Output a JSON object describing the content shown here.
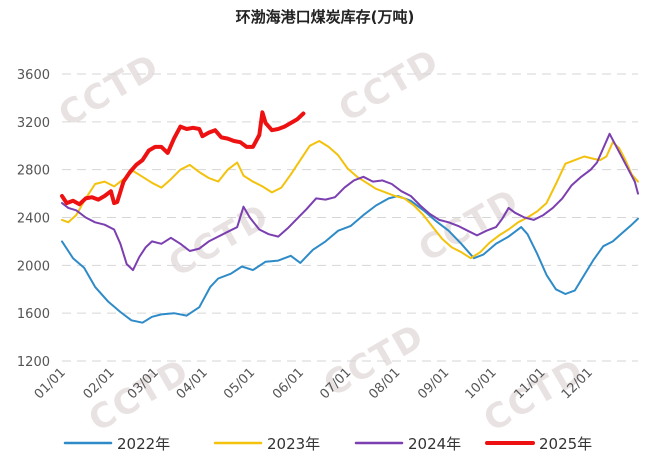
{
  "chart_data": {
    "type": "line",
    "title": "环渤海港口煤炭库存(万吨)",
    "watermark": "CCTD",
    "ylim": [
      1200,
      3600
    ],
    "yticks": [
      1200,
      1600,
      2000,
      2400,
      2800,
      3200,
      3600
    ],
    "xlim": [
      1,
      366
    ],
    "xticks": [
      {
        "label": "01/01",
        "day": 1
      },
      {
        "label": "02/01",
        "day": 32
      },
      {
        "label": "03/01",
        "day": 60
      },
      {
        "label": "04/01",
        "day": 91
      },
      {
        "label": "05/01",
        "day": 121
      },
      {
        "label": "06/01",
        "day": 152
      },
      {
        "label": "07/01",
        "day": 182
      },
      {
        "label": "08/01",
        "day": 213
      },
      {
        "label": "09/01",
        "day": 244
      },
      {
        "label": "10/01",
        "day": 274
      },
      {
        "label": "11/01",
        "day": 305
      },
      {
        "label": "12/01",
        "day": 335
      }
    ],
    "grid": true,
    "legend_position": "bottom",
    "series": [
      {
        "name": "2022年",
        "color": "#2e8bc8",
        "width": 2,
        "points": [
          [
            1,
            2200
          ],
          [
            8,
            2060
          ],
          [
            15,
            1980
          ],
          [
            22,
            1820
          ],
          [
            30,
            1700
          ],
          [
            38,
            1610
          ],
          [
            45,
            1540
          ],
          [
            52,
            1520
          ],
          [
            58,
            1570
          ],
          [
            64,
            1590
          ],
          [
            72,
            1600
          ],
          [
            80,
            1580
          ],
          [
            88,
            1650
          ],
          [
            95,
            1820
          ],
          [
            100,
            1890
          ],
          [
            108,
            1930
          ],
          [
            115,
            1990
          ],
          [
            122,
            1960
          ],
          [
            130,
            2030
          ],
          [
            138,
            2040
          ],
          [
            146,
            2080
          ],
          [
            152,
            2020
          ],
          [
            160,
            2130
          ],
          [
            168,
            2200
          ],
          [
            176,
            2290
          ],
          [
            184,
            2330
          ],
          [
            192,
            2420
          ],
          [
            200,
            2500
          ],
          [
            208,
            2560
          ],
          [
            214,
            2580
          ],
          [
            222,
            2540
          ],
          [
            230,
            2460
          ],
          [
            238,
            2370
          ],
          [
            246,
            2290
          ],
          [
            254,
            2180
          ],
          [
            262,
            2060
          ],
          [
            268,
            2090
          ],
          [
            276,
            2180
          ],
          [
            284,
            2240
          ],
          [
            292,
            2320
          ],
          [
            296,
            2260
          ],
          [
            302,
            2100
          ],
          [
            308,
            1920
          ],
          [
            314,
            1800
          ],
          [
            320,
            1760
          ],
          [
            326,
            1790
          ],
          [
            332,
            1920
          ],
          [
            338,
            2050
          ],
          [
            344,
            2160
          ],
          [
            350,
            2200
          ],
          [
            356,
            2270
          ],
          [
            362,
            2340
          ],
          [
            366,
            2390
          ]
        ]
      },
      {
        "name": "2023年",
        "color": "#f4c20d",
        "width": 2,
        "points": [
          [
            1,
            2380
          ],
          [
            5,
            2360
          ],
          [
            10,
            2420
          ],
          [
            16,
            2560
          ],
          [
            22,
            2680
          ],
          [
            28,
            2700
          ],
          [
            34,
            2660
          ],
          [
            40,
            2720
          ],
          [
            46,
            2790
          ],
          [
            52,
            2740
          ],
          [
            58,
            2690
          ],
          [
            64,
            2650
          ],
          [
            70,
            2720
          ],
          [
            76,
            2800
          ],
          [
            82,
            2840
          ],
          [
            88,
            2780
          ],
          [
            94,
            2730
          ],
          [
            100,
            2700
          ],
          [
            106,
            2800
          ],
          [
            112,
            2860
          ],
          [
            116,
            2750
          ],
          [
            122,
            2700
          ],
          [
            128,
            2660
          ],
          [
            134,
            2610
          ],
          [
            140,
            2650
          ],
          [
            146,
            2760
          ],
          [
            152,
            2880
          ],
          [
            158,
            3000
          ],
          [
            164,
            3040
          ],
          [
            170,
            2990
          ],
          [
            176,
            2920
          ],
          [
            182,
            2810
          ],
          [
            188,
            2740
          ],
          [
            194,
            2690
          ],
          [
            200,
            2640
          ],
          [
            206,
            2610
          ],
          [
            212,
            2580
          ],
          [
            218,
            2560
          ],
          [
            224,
            2500
          ],
          [
            230,
            2420
          ],
          [
            236,
            2320
          ],
          [
            242,
            2220
          ],
          [
            248,
            2150
          ],
          [
            254,
            2110
          ],
          [
            260,
            2060
          ],
          [
            266,
            2110
          ],
          [
            272,
            2190
          ],
          [
            278,
            2250
          ],
          [
            284,
            2300
          ],
          [
            290,
            2360
          ],
          [
            296,
            2400
          ],
          [
            302,
            2450
          ],
          [
            308,
            2520
          ],
          [
            314,
            2680
          ],
          [
            320,
            2850
          ],
          [
            326,
            2880
          ],
          [
            332,
            2910
          ],
          [
            338,
            2890
          ],
          [
            342,
            2880
          ],
          [
            346,
            2910
          ],
          [
            350,
            3030
          ],
          [
            354,
            2980
          ],
          [
            358,
            2880
          ],
          [
            362,
            2760
          ],
          [
            366,
            2700
          ]
        ]
      },
      {
        "name": "2024年",
        "color": "#7b3fb0",
        "width": 2,
        "points": [
          [
            1,
            2520
          ],
          [
            5,
            2480
          ],
          [
            10,
            2460
          ],
          [
            16,
            2400
          ],
          [
            22,
            2360
          ],
          [
            28,
            2340
          ],
          [
            34,
            2300
          ],
          [
            38,
            2180
          ],
          [
            42,
            2010
          ],
          [
            46,
            1960
          ],
          [
            50,
            2070
          ],
          [
            54,
            2150
          ],
          [
            58,
            2200
          ],
          [
            64,
            2180
          ],
          [
            70,
            2230
          ],
          [
            76,
            2180
          ],
          [
            82,
            2120
          ],
          [
            88,
            2140
          ],
          [
            94,
            2200
          ],
          [
            100,
            2240
          ],
          [
            106,
            2280
          ],
          [
            112,
            2320
          ],
          [
            116,
            2490
          ],
          [
            120,
            2400
          ],
          [
            126,
            2300
          ],
          [
            132,
            2260
          ],
          [
            138,
            2240
          ],
          [
            144,
            2310
          ],
          [
            150,
            2390
          ],
          [
            156,
            2470
          ],
          [
            162,
            2560
          ],
          [
            168,
            2550
          ],
          [
            174,
            2570
          ],
          [
            180,
            2650
          ],
          [
            186,
            2710
          ],
          [
            192,
            2740
          ],
          [
            198,
            2700
          ],
          [
            204,
            2710
          ],
          [
            210,
            2680
          ],
          [
            216,
            2620
          ],
          [
            222,
            2580
          ],
          [
            228,
            2500
          ],
          [
            234,
            2430
          ],
          [
            240,
            2380
          ],
          [
            246,
            2360
          ],
          [
            252,
            2330
          ],
          [
            258,
            2290
          ],
          [
            264,
            2250
          ],
          [
            270,
            2290
          ],
          [
            276,
            2320
          ],
          [
            280,
            2390
          ],
          [
            284,
            2480
          ],
          [
            288,
            2440
          ],
          [
            294,
            2400
          ],
          [
            300,
            2380
          ],
          [
            306,
            2420
          ],
          [
            312,
            2480
          ],
          [
            318,
            2560
          ],
          [
            324,
            2670
          ],
          [
            330,
            2740
          ],
          [
            336,
            2800
          ],
          [
            340,
            2860
          ],
          [
            344,
            2980
          ],
          [
            348,
            3100
          ],
          [
            352,
            3000
          ],
          [
            356,
            2900
          ],
          [
            360,
            2800
          ],
          [
            364,
            2700
          ],
          [
            366,
            2600
          ]
        ]
      },
      {
        "name": "2025年",
        "color": "#ee1111",
        "width": 4,
        "points": [
          [
            1,
            2580
          ],
          [
            4,
            2520
          ],
          [
            8,
            2540
          ],
          [
            12,
            2510
          ],
          [
            16,
            2560
          ],
          [
            20,
            2570
          ],
          [
            24,
            2550
          ],
          [
            28,
            2580
          ],
          [
            32,
            2620
          ],
          [
            34,
            2520
          ],
          [
            36,
            2530
          ],
          [
            40,
            2700
          ],
          [
            44,
            2780
          ],
          [
            48,
            2840
          ],
          [
            52,
            2880
          ],
          [
            56,
            2960
          ],
          [
            60,
            2990
          ],
          [
            64,
            2990
          ],
          [
            68,
            2940
          ],
          [
            72,
            3060
          ],
          [
            76,
            3160
          ],
          [
            80,
            3140
          ],
          [
            84,
            3150
          ],
          [
            88,
            3140
          ],
          [
            90,
            3080
          ],
          [
            94,
            3110
          ],
          [
            98,
            3130
          ],
          [
            102,
            3070
          ],
          [
            106,
            3060
          ],
          [
            110,
            3040
          ],
          [
            114,
            3030
          ],
          [
            118,
            2990
          ],
          [
            122,
            2990
          ],
          [
            126,
            3090
          ],
          [
            128,
            3280
          ],
          [
            130,
            3190
          ],
          [
            134,
            3130
          ],
          [
            138,
            3140
          ],
          [
            142,
            3160
          ],
          [
            146,
            3190
          ],
          [
            150,
            3220
          ],
          [
            154,
            3270
          ]
        ]
      }
    ]
  }
}
